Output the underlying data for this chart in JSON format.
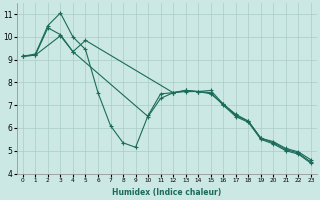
{
  "xlabel": "Humidex (Indice chaleur)",
  "background_color": "#cce8e4",
  "grid_color": "#aaccc8",
  "line_color": "#1a6b5a",
  "xlim": [
    -0.5,
    23.5
  ],
  "ylim": [
    4,
    11.5
  ],
  "x_ticks": [
    0,
    1,
    2,
    3,
    4,
    5,
    6,
    7,
    8,
    9,
    10,
    11,
    12,
    13,
    14,
    15,
    16,
    17,
    18,
    19,
    20,
    21,
    22,
    23
  ],
  "y_ticks": [
    4,
    5,
    6,
    7,
    8,
    9,
    10,
    11
  ],
  "series": [
    {
      "x": [
        0,
        1,
        2,
        3,
        4,
        5,
        6,
        7,
        8,
        9,
        10,
        11,
        12,
        13,
        14,
        15,
        16,
        17,
        18,
        19,
        20,
        21,
        22,
        23
      ],
      "y": [
        9.15,
        9.25,
        10.5,
        11.05,
        10.0,
        9.45,
        7.55,
        6.1,
        5.35,
        5.15,
        6.55,
        7.5,
        7.55,
        7.6,
        7.6,
        7.65,
        7.05,
        6.55,
        6.3,
        5.55,
        5.35,
        5.05,
        4.9,
        4.5
      ]
    },
    {
      "x": [
        0,
        1,
        3,
        4,
        5,
        12,
        13,
        14,
        15,
        16,
        17,
        18,
        19,
        20,
        21,
        22,
        23
      ],
      "y": [
        9.15,
        9.2,
        10.05,
        9.35,
        9.85,
        7.55,
        7.65,
        7.6,
        7.55,
        7.0,
        6.5,
        6.25,
        5.5,
        5.3,
        5.0,
        4.85,
        4.45
      ]
    },
    {
      "x": [
        0,
        1,
        2,
        3,
        4,
        10,
        11,
        12,
        13,
        14,
        15,
        16,
        17,
        18,
        19,
        20,
        21,
        22,
        23
      ],
      "y": [
        9.15,
        9.2,
        10.4,
        10.1,
        9.35,
        6.5,
        7.3,
        7.55,
        7.65,
        7.6,
        7.5,
        7.05,
        6.6,
        6.3,
        5.55,
        5.4,
        5.1,
        4.95,
        4.6
      ]
    }
  ],
  "marker_size": 3,
  "line_width": 0.8
}
